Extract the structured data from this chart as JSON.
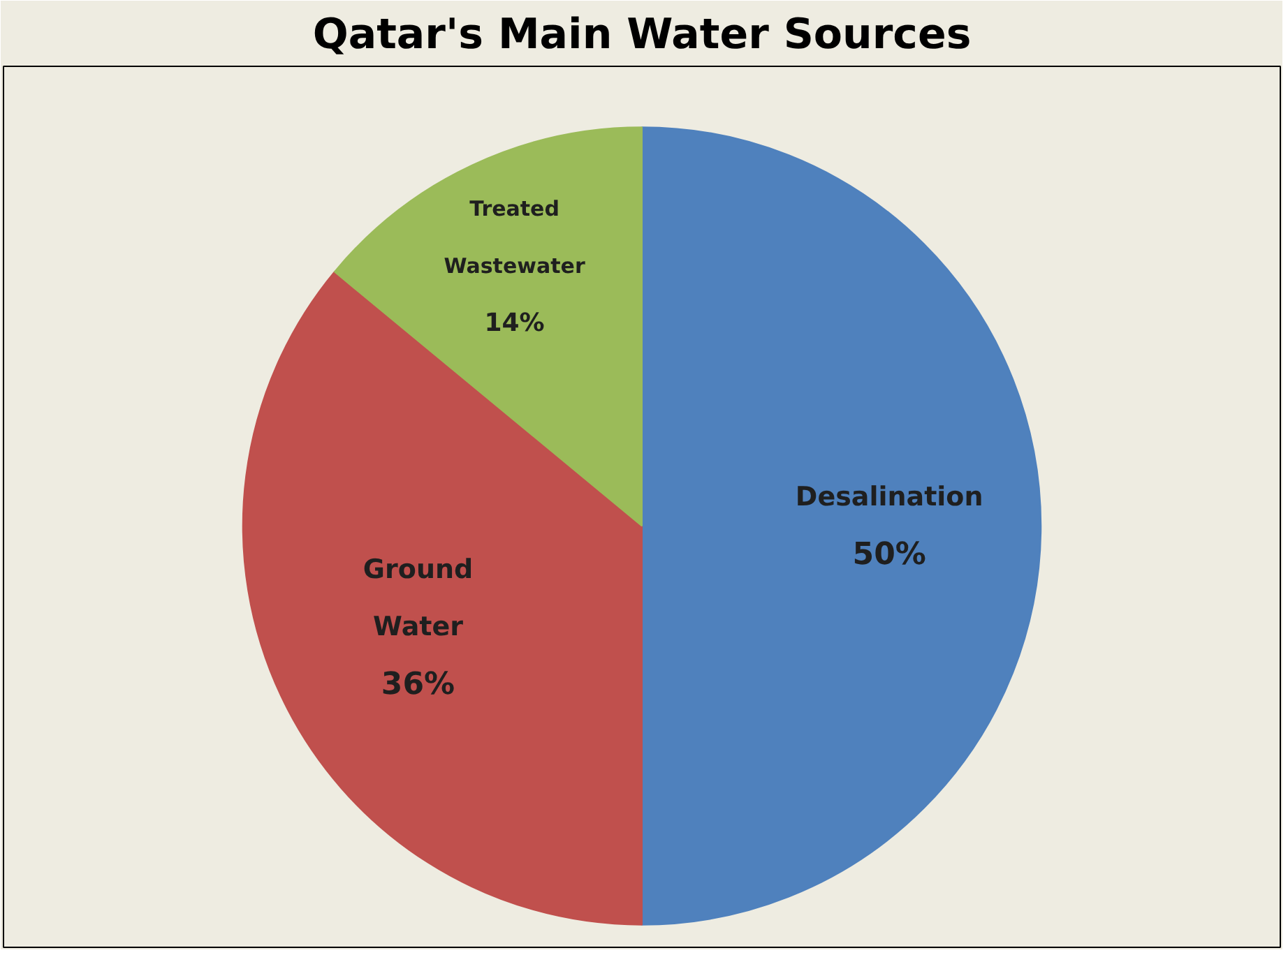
{
  "chart_data": {
    "type": "pie",
    "title": "Qatar's Main Water Sources",
    "categories": [
      "Desalination",
      "Ground Water",
      "Treated Wastewater"
    ],
    "values": [
      50,
      36,
      14
    ],
    "value_labels": [
      "50%",
      "36%",
      "14%"
    ],
    "colors": [
      "#4f81bd",
      "#c0504d",
      "#9bbb59"
    ],
    "legend": false
  }
}
